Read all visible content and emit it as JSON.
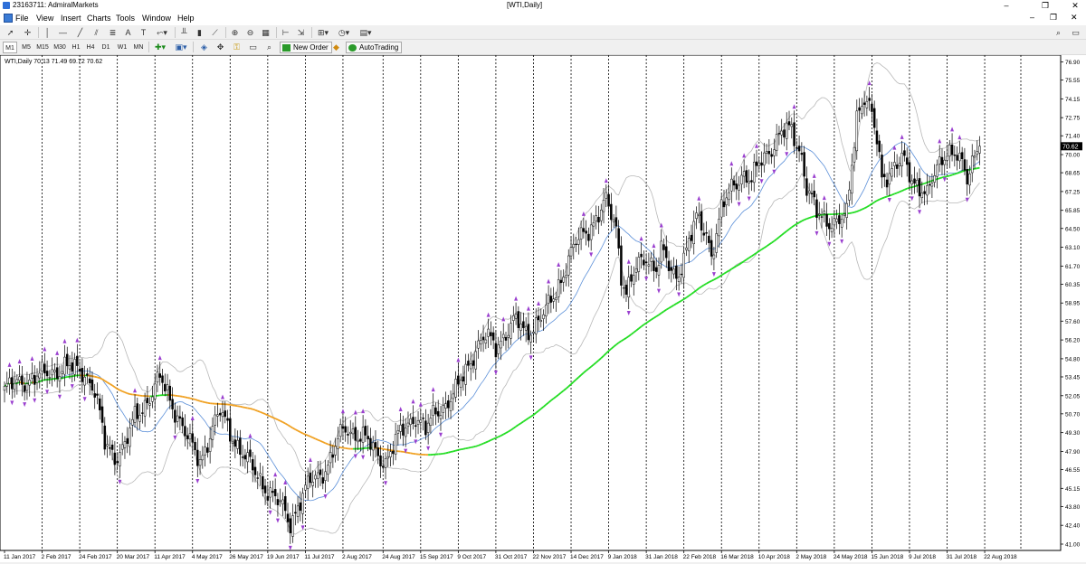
{
  "window": {
    "title": "23163711: AdmiralMarkets",
    "doc_title": "[WTI,Daily]",
    "controls": [
      "–",
      "❐",
      "✕"
    ]
  },
  "menu": {
    "items": [
      {
        "label": "File",
        "key": "F"
      },
      {
        "label": "View",
        "key": "V"
      },
      {
        "label": "Insert",
        "key": "I"
      },
      {
        "label": "Charts",
        "key": "C"
      },
      {
        "label": "Tools",
        "key": "T"
      },
      {
        "label": "Window",
        "key": "W"
      },
      {
        "label": "Help",
        "key": "H"
      }
    ],
    "right": [
      "–",
      "❐",
      "✕"
    ]
  },
  "toolbar": {
    "timeframes": [
      "M1",
      "M5",
      "M15",
      "M30",
      "H1",
      "H4",
      "D1",
      "W1",
      "MN"
    ],
    "active_timeframe": "M1",
    "new_order_label": "New Order",
    "autotrading_label": "AutoTrading"
  },
  "chart_data": {
    "type": "candlestick",
    "symbol_info": "WTI,Daily 70.13 71.49 69.72 70.62",
    "current_price_label": "70.62",
    "current_price": 70.62,
    "ylim": [
      41.0,
      77.0
    ],
    "y_ticks": [
      "76.90",
      "75.55",
      "74.15",
      "72.75",
      "71.40",
      "70.00",
      "68.65",
      "67.25",
      "65.85",
      "64.50",
      "63.10",
      "61.70",
      "60.35",
      "58.95",
      "57.60",
      "56.20",
      "54.80",
      "53.45",
      "52.05",
      "50.70",
      "49.30",
      "47.90",
      "46.55",
      "45.15",
      "43.80",
      "42.40",
      "41.00"
    ],
    "x_ticks": [
      "11 Jan 2017",
      "2 Feb 2017",
      "24 Feb 2017",
      "20 Mar 2017",
      "11 Apr 2017",
      "4 May 2017",
      "26 May 2017",
      "19 Jun 2017",
      "11 Jul 2017",
      "2 Aug 2017",
      "24 Aug 2017",
      "15 Sep 2017",
      "9 Oct 2017",
      "31 Oct 2017",
      "22 Nov 2017",
      "14 Dec 2017",
      "9 Jan 2018",
      "31 Jan 2018",
      "22 Feb 2018",
      "16 Mar 2018",
      "10 Apr 2018",
      "2 May 2018",
      "24 May 2018",
      "15 Jun 2018",
      "9 Jul 2018",
      "31 Jul 2018",
      "22 Aug 2018"
    ],
    "close_anchors": [
      [
        0,
        52.5
      ],
      [
        8,
        53.2
      ],
      [
        16,
        53.6
      ],
      [
        24,
        54.2
      ],
      [
        32,
        53.8
      ],
      [
        36,
        52.4
      ],
      [
        40,
        48.5
      ],
      [
        44,
        47.6
      ],
      [
        48,
        48.3
      ],
      [
        52,
        50.4
      ],
      [
        58,
        52.0
      ],
      [
        62,
        53.3
      ],
      [
        66,
        51.8
      ],
      [
        70,
        50.2
      ],
      [
        74,
        48.4
      ],
      [
        78,
        47.2
      ],
      [
        82,
        49.2
      ],
      [
        86,
        50.8
      ],
      [
        90,
        49.4
      ],
      [
        94,
        48.0
      ],
      [
        98,
        46.8
      ],
      [
        102,
        45.8
      ],
      [
        106,
        44.8
      ],
      [
        110,
        43.9
      ],
      [
        114,
        42.6
      ],
      [
        118,
        44.3
      ],
      [
        122,
        45.6
      ],
      [
        126,
        46.2
      ],
      [
        130,
        47.3
      ],
      [
        133,
        48.7
      ],
      [
        136,
        49.6
      ],
      [
        140,
        49.3
      ],
      [
        144,
        48.8
      ],
      [
        148,
        47.8
      ],
      [
        152,
        47.2
      ],
      [
        156,
        48.6
      ],
      [
        160,
        49.8
      ],
      [
        164,
        50.6
      ],
      [
        168,
        49.4
      ],
      [
        172,
        50.9
      ],
      [
        176,
        51.4
      ],
      [
        180,
        52.3
      ],
      [
        184,
        53.9
      ],
      [
        188,
        55.6
      ],
      [
        192,
        56.4
      ],
      [
        196,
        55.7
      ],
      [
        200,
        56.8
      ],
      [
        204,
        57.6
      ],
      [
        208,
        56.7
      ],
      [
        212,
        57.5
      ],
      [
        216,
        58.3
      ],
      [
        220,
        59.8
      ],
      [
        224,
        61.8
      ],
      [
        228,
        63.4
      ],
      [
        232,
        64.3
      ],
      [
        236,
        65.3
      ],
      [
        240,
        66.4
      ],
      [
        244,
        64.6
      ],
      [
        246,
        61.2
      ],
      [
        248,
        59.8
      ],
      [
        252,
        61.4
      ],
      [
        256,
        62.4
      ],
      [
        260,
        61.6
      ],
      [
        262,
        62.8
      ],
      [
        266,
        61.2
      ],
      [
        268,
        60.9
      ],
      [
        272,
        63.0
      ],
      [
        276,
        65.1
      ],
      [
        280,
        64.2
      ],
      [
        282,
        62.6
      ],
      [
        286,
        65.8
      ],
      [
        290,
        67.5
      ],
      [
        294,
        68.6
      ],
      [
        298,
        68.0
      ],
      [
        302,
        69.7
      ],
      [
        306,
        70.6
      ],
      [
        310,
        71.5
      ],
      [
        314,
        71.9
      ],
      [
        318,
        69.9
      ],
      [
        320,
        67.5
      ],
      [
        324,
        65.6
      ],
      [
        328,
        65.2
      ],
      [
        332,
        64.9
      ],
      [
        336,
        65.4
      ],
      [
        338,
        69.4
      ],
      [
        340,
        73.0
      ],
      [
        343,
        74.4
      ],
      [
        346,
        72.8
      ],
      [
        348,
        71.0
      ],
      [
        350,
        68.2
      ],
      [
        354,
        69.0
      ],
      [
        358,
        69.6
      ],
      [
        362,
        68.1
      ],
      [
        366,
        67.6
      ],
      [
        368,
        67.0
      ],
      [
        372,
        68.8
      ],
      [
        376,
        70.5
      ],
      [
        380,
        70.0
      ],
      [
        384,
        68.0
      ],
      [
        386,
        69.5
      ],
      [
        388,
        70.62
      ]
    ],
    "indicators": [
      "SMA (orange/green)",
      "Bollinger Bands",
      "Fractals"
    ]
  }
}
